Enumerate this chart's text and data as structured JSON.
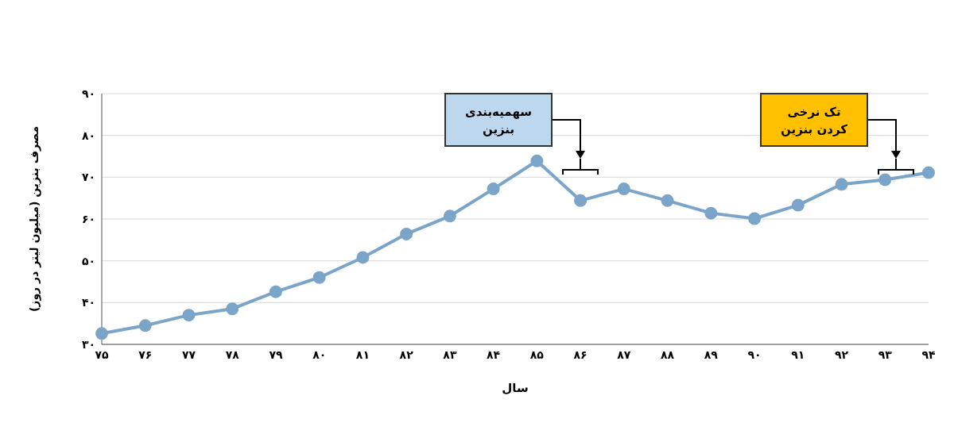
{
  "chart_data": {
    "type": "line",
    "xlabel": "سال",
    "ylabel": "مصرف بنزین (میلیون لیتر در روز)",
    "categories": [
      "۷۵",
      "۷۶",
      "۷۷",
      "۷۸",
      "۷۹",
      "۸۰",
      "۸۱",
      "۸۲",
      "۸۳",
      "۸۴",
      "۸۵",
      "۸۶",
      "۸۷",
      "۸۸",
      "۸۹",
      "۹۰",
      "۹۱",
      "۹۲",
      "۹۳",
      "۹۴"
    ],
    "series": [
      {
        "color": "#7ba4c9",
        "values": [
          32.6,
          34.5,
          37,
          38.5,
          42.6,
          46,
          50.8,
          56.4,
          60.7,
          67.2,
          73.9,
          64.4,
          67.2,
          64.4,
          61.4,
          60.1,
          63.3,
          68.3,
          69.4,
          71.1
        ]
      }
    ],
    "ylim": [
      30,
      90
    ],
    "yticks": [
      {
        "value": 30,
        "label": "۳۰"
      },
      {
        "value": 40,
        "label": "۴۰"
      },
      {
        "value": 50,
        "label": "۵۰"
      },
      {
        "value": 60,
        "label": "۶۰"
      },
      {
        "value": 70,
        "label": "۷۰"
      },
      {
        "value": 80,
        "label": "۸۰"
      },
      {
        "value": 90,
        "label": "۹۰"
      }
    ],
    "grid": "y",
    "marker": "circle",
    "line_style": "solid",
    "annotations": [
      "سهمیه‌بندی\nبنزین",
      "تک نرخی\nکردن بنزین"
    ]
  }
}
